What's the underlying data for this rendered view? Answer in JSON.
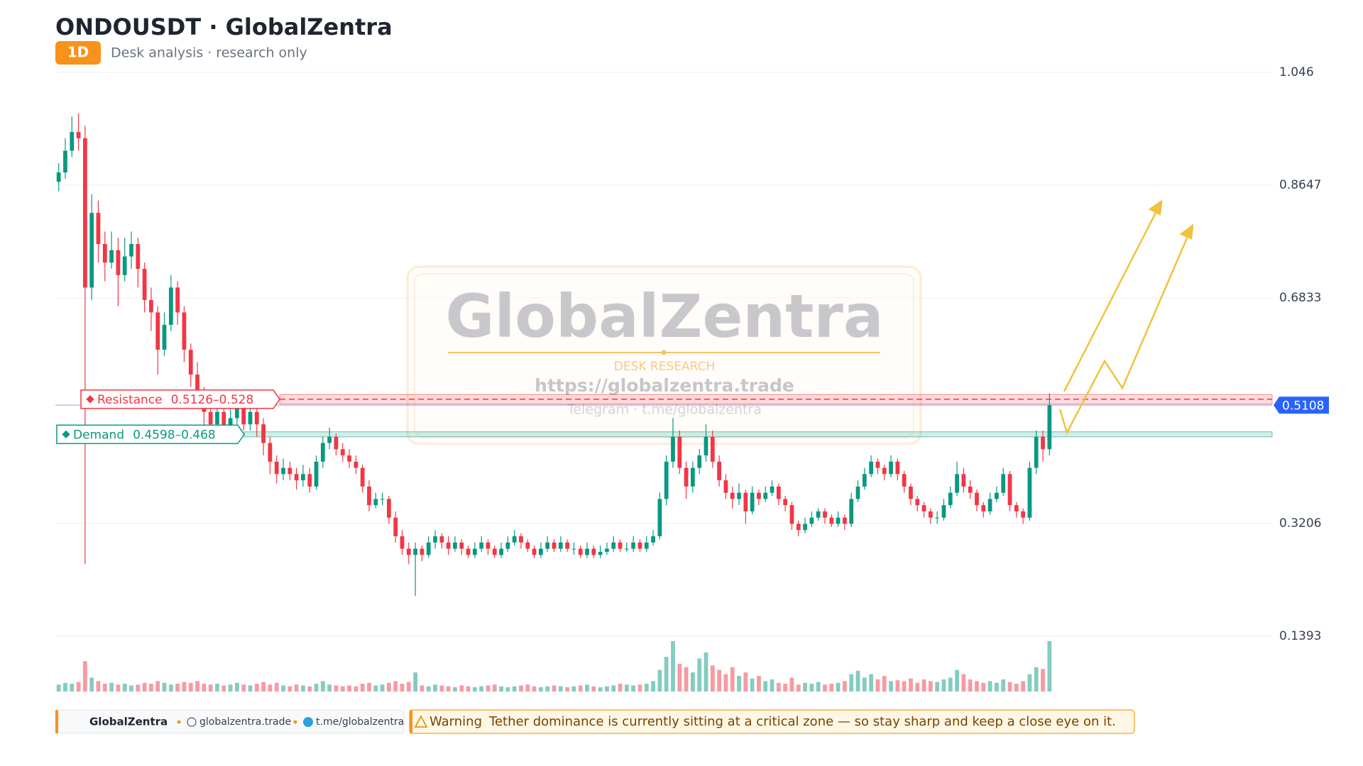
{
  "header": {
    "title": "ONDOUSDT · GlobalZentra",
    "timeframe": "1D",
    "subtitle": "Desk analysis · research only"
  },
  "chart_data": {
    "type": "candlestick",
    "candles": [
      [
        0.87,
        0.9,
        0.855,
        0.885
      ],
      [
        0.885,
        0.94,
        0.875,
        0.92
      ],
      [
        0.92,
        0.975,
        0.91,
        0.95
      ],
      [
        0.95,
        0.98,
        0.92,
        0.94
      ],
      [
        0.94,
        0.96,
        0.255,
        0.7
      ],
      [
        0.7,
        0.85,
        0.68,
        0.82
      ],
      [
        0.82,
        0.84,
        0.74,
        0.77
      ],
      [
        0.77,
        0.79,
        0.71,
        0.74
      ],
      [
        0.74,
        0.79,
        0.73,
        0.76
      ],
      [
        0.76,
        0.78,
        0.67,
        0.72
      ],
      [
        0.72,
        0.78,
        0.71,
        0.75
      ],
      [
        0.75,
        0.79,
        0.73,
        0.77
      ],
      [
        0.77,
        0.78,
        0.7,
        0.73
      ],
      [
        0.73,
        0.74,
        0.66,
        0.68
      ],
      [
        0.68,
        0.7,
        0.63,
        0.66
      ],
      [
        0.66,
        0.67,
        0.56,
        0.6
      ],
      [
        0.6,
        0.66,
        0.59,
        0.64
      ],
      [
        0.64,
        0.72,
        0.63,
        0.7
      ],
      [
        0.7,
        0.71,
        0.64,
        0.66
      ],
      [
        0.66,
        0.67,
        0.58,
        0.6
      ],
      [
        0.6,
        0.61,
        0.54,
        0.56
      ],
      [
        0.56,
        0.58,
        0.51,
        0.53
      ],
      [
        0.53,
        0.54,
        0.47,
        0.5
      ],
      [
        0.5,
        0.52,
        0.46,
        0.48
      ],
      [
        0.48,
        0.52,
        0.47,
        0.5
      ],
      [
        0.5,
        0.51,
        0.45,
        0.47
      ],
      [
        0.47,
        0.51,
        0.46,
        0.49
      ],
      [
        0.49,
        0.53,
        0.48,
        0.51
      ],
      [
        0.51,
        0.52,
        0.47,
        0.48
      ],
      [
        0.48,
        0.52,
        0.47,
        0.5
      ],
      [
        0.5,
        0.51,
        0.46,
        0.48
      ],
      [
        0.48,
        0.49,
        0.43,
        0.45
      ],
      [
        0.45,
        0.46,
        0.4,
        0.42
      ],
      [
        0.42,
        0.43,
        0.385,
        0.4
      ],
      [
        0.4,
        0.425,
        0.39,
        0.41
      ],
      [
        0.41,
        0.42,
        0.39,
        0.4
      ],
      [
        0.4,
        0.41,
        0.375,
        0.39
      ],
      [
        0.39,
        0.415,
        0.38,
        0.4
      ],
      [
        0.4,
        0.41,
        0.37,
        0.38
      ],
      [
        0.38,
        0.43,
        0.375,
        0.42
      ],
      [
        0.42,
        0.46,
        0.41,
        0.45
      ],
      [
        0.45,
        0.475,
        0.44,
        0.46
      ],
      [
        0.46,
        0.465,
        0.43,
        0.44
      ],
      [
        0.44,
        0.45,
        0.42,
        0.43
      ],
      [
        0.43,
        0.44,
        0.41,
        0.42
      ],
      [
        0.42,
        0.43,
        0.4,
        0.41
      ],
      [
        0.41,
        0.415,
        0.37,
        0.38
      ],
      [
        0.38,
        0.39,
        0.34,
        0.35
      ],
      [
        0.35,
        0.37,
        0.345,
        0.36
      ],
      [
        0.36,
        0.37,
        0.35,
        0.36
      ],
      [
        0.36,
        0.365,
        0.32,
        0.33
      ],
      [
        0.33,
        0.34,
        0.29,
        0.3
      ],
      [
        0.3,
        0.31,
        0.27,
        0.28
      ],
      [
        0.28,
        0.29,
        0.255,
        0.27
      ],
      [
        0.27,
        0.29,
        0.204,
        0.28
      ],
      [
        0.28,
        0.285,
        0.26,
        0.27
      ],
      [
        0.27,
        0.3,
        0.265,
        0.29
      ],
      [
        0.29,
        0.31,
        0.28,
        0.3
      ],
      [
        0.3,
        0.305,
        0.28,
        0.29
      ],
      [
        0.29,
        0.3,
        0.27,
        0.28
      ],
      [
        0.28,
        0.3,
        0.275,
        0.29
      ],
      [
        0.29,
        0.295,
        0.27,
        0.28
      ],
      [
        0.28,
        0.285,
        0.265,
        0.27
      ],
      [
        0.27,
        0.29,
        0.265,
        0.28
      ],
      [
        0.28,
        0.3,
        0.275,
        0.29
      ],
      [
        0.29,
        0.295,
        0.27,
        0.28
      ],
      [
        0.28,
        0.285,
        0.265,
        0.27
      ],
      [
        0.27,
        0.29,
        0.265,
        0.28
      ],
      [
        0.28,
        0.3,
        0.275,
        0.29
      ],
      [
        0.29,
        0.31,
        0.285,
        0.3
      ],
      [
        0.3,
        0.305,
        0.28,
        0.29
      ],
      [
        0.29,
        0.295,
        0.275,
        0.28
      ],
      [
        0.28,
        0.285,
        0.265,
        0.27
      ],
      [
        0.27,
        0.29,
        0.265,
        0.28
      ],
      [
        0.28,
        0.3,
        0.275,
        0.29
      ],
      [
        0.29,
        0.295,
        0.275,
        0.28
      ],
      [
        0.28,
        0.3,
        0.275,
        0.29
      ],
      [
        0.29,
        0.295,
        0.275,
        0.28
      ],
      [
        0.28,
        0.29,
        0.27,
        0.28
      ],
      [
        0.28,
        0.285,
        0.265,
        0.27
      ],
      [
        0.27,
        0.29,
        0.265,
        0.28
      ],
      [
        0.28,
        0.285,
        0.265,
        0.27
      ],
      [
        0.27,
        0.285,
        0.265,
        0.275
      ],
      [
        0.275,
        0.29,
        0.27,
        0.28
      ],
      [
        0.28,
        0.3,
        0.275,
        0.29
      ],
      [
        0.29,
        0.295,
        0.275,
        0.28
      ],
      [
        0.28,
        0.29,
        0.275,
        0.28
      ],
      [
        0.28,
        0.3,
        0.275,
        0.29
      ],
      [
        0.29,
        0.295,
        0.275,
        0.28
      ],
      [
        0.28,
        0.3,
        0.275,
        0.29
      ],
      [
        0.29,
        0.31,
        0.285,
        0.3
      ],
      [
        0.3,
        0.37,
        0.295,
        0.36
      ],
      [
        0.36,
        0.43,
        0.35,
        0.42
      ],
      [
        0.42,
        0.49,
        0.41,
        0.46
      ],
      [
        0.46,
        0.47,
        0.4,
        0.41
      ],
      [
        0.41,
        0.42,
        0.36,
        0.38
      ],
      [
        0.38,
        0.42,
        0.37,
        0.41
      ],
      [
        0.41,
        0.44,
        0.4,
        0.43
      ],
      [
        0.43,
        0.48,
        0.42,
        0.46
      ],
      [
        0.46,
        0.47,
        0.41,
        0.42
      ],
      [
        0.42,
        0.43,
        0.38,
        0.39
      ],
      [
        0.39,
        0.4,
        0.36,
        0.37
      ],
      [
        0.37,
        0.38,
        0.345,
        0.36
      ],
      [
        0.36,
        0.385,
        0.35,
        0.37
      ],
      [
        0.37,
        0.375,
        0.32,
        0.34
      ],
      [
        0.34,
        0.38,
        0.335,
        0.37
      ],
      [
        0.37,
        0.375,
        0.35,
        0.36
      ],
      [
        0.36,
        0.38,
        0.355,
        0.37
      ],
      [
        0.37,
        0.39,
        0.365,
        0.38
      ],
      [
        0.38,
        0.385,
        0.35,
        0.36
      ],
      [
        0.36,
        0.365,
        0.34,
        0.35
      ],
      [
        0.35,
        0.355,
        0.31,
        0.32
      ],
      [
        0.32,
        0.325,
        0.3,
        0.31
      ],
      [
        0.31,
        0.33,
        0.305,
        0.32
      ],
      [
        0.32,
        0.34,
        0.315,
        0.33
      ],
      [
        0.33,
        0.345,
        0.325,
        0.34
      ],
      [
        0.34,
        0.345,
        0.32,
        0.33
      ],
      [
        0.33,
        0.335,
        0.315,
        0.32
      ],
      [
        0.32,
        0.34,
        0.315,
        0.33
      ],
      [
        0.33,
        0.335,
        0.31,
        0.32
      ],
      [
        0.32,
        0.37,
        0.315,
        0.36
      ],
      [
        0.36,
        0.39,
        0.355,
        0.38
      ],
      [
        0.38,
        0.41,
        0.375,
        0.4
      ],
      [
        0.4,
        0.43,
        0.395,
        0.42
      ],
      [
        0.42,
        0.425,
        0.4,
        0.41
      ],
      [
        0.41,
        0.415,
        0.39,
        0.4
      ],
      [
        0.4,
        0.43,
        0.395,
        0.42
      ],
      [
        0.42,
        0.425,
        0.39,
        0.4
      ],
      [
        0.4,
        0.405,
        0.37,
        0.38
      ],
      [
        0.38,
        0.385,
        0.35,
        0.36
      ],
      [
        0.36,
        0.365,
        0.34,
        0.35
      ],
      [
        0.35,
        0.355,
        0.33,
        0.34
      ],
      [
        0.34,
        0.345,
        0.32,
        0.33
      ],
      [
        0.33,
        0.34,
        0.32,
        0.33
      ],
      [
        0.33,
        0.36,
        0.325,
        0.35
      ],
      [
        0.35,
        0.38,
        0.345,
        0.37
      ],
      [
        0.37,
        0.42,
        0.365,
        0.4
      ],
      [
        0.4,
        0.41,
        0.37,
        0.38
      ],
      [
        0.38,
        0.39,
        0.36,
        0.37
      ],
      [
        0.37,
        0.375,
        0.34,
        0.35
      ],
      [
        0.35,
        0.355,
        0.33,
        0.34
      ],
      [
        0.34,
        0.37,
        0.335,
        0.36
      ],
      [
        0.36,
        0.38,
        0.355,
        0.37
      ],
      [
        0.37,
        0.41,
        0.365,
        0.4
      ],
      [
        0.4,
        0.405,
        0.34,
        0.35
      ],
      [
        0.35,
        0.355,
        0.33,
        0.34
      ],
      [
        0.34,
        0.345,
        0.32,
        0.33
      ],
      [
        0.33,
        0.42,
        0.325,
        0.41
      ],
      [
        0.41,
        0.47,
        0.4,
        0.46
      ],
      [
        0.46,
        0.47,
        0.42,
        0.44
      ],
      [
        0.44,
        0.53,
        0.43,
        0.5108
      ]
    ],
    "volume": [
      8,
      10,
      9,
      11,
      35,
      16,
      12,
      9,
      10,
      8,
      9,
      7,
      8,
      10,
      9,
      12,
      10,
      8,
      9,
      11,
      10,
      12,
      9,
      8,
      9,
      7,
      8,
      10,
      8,
      7,
      9,
      11,
      8,
      10,
      7,
      6,
      8,
      7,
      6,
      9,
      12,
      8,
      7,
      6,
      7,
      6,
      9,
      10,
      7,
      8,
      10,
      12,
      9,
      11,
      22,
      7,
      6,
      8,
      7,
      6,
      5,
      7,
      6,
      5,
      6,
      7,
      8,
      6,
      5,
      6,
      7,
      8,
      6,
      5,
      6,
      7,
      6,
      5,
      6,
      7,
      8,
      6,
      5,
      6,
      7,
      9,
      8,
      7,
      8,
      9,
      12,
      25,
      40,
      58,
      32,
      28,
      22,
      38,
      45,
      30,
      25,
      20,
      28,
      18,
      22,
      15,
      18,
      12,
      14,
      10,
      9,
      16,
      8,
      10,
      9,
      11,
      8,
      9,
      10,
      12,
      20,
      24,
      16,
      20,
      14,
      18,
      12,
      13,
      12,
      15,
      10,
      14,
      12,
      11,
      14,
      16,
      25,
      20,
      14,
      12,
      10,
      12,
      10,
      14,
      11,
      9,
      12,
      20,
      28,
      26,
      58
    ],
    "up_color": "#089981",
    "down_color": "#f23645",
    "ylim": [
      0.1393,
      1.046
    ],
    "yticks": [
      0.1393,
      0.3206,
      0.6833,
      0.8647,
      1.046
    ],
    "grid": true,
    "last_price": 0.5108,
    "last_price_color": "#2962ff",
    "zones": [
      {
        "name": "Resistance",
        "low": 0.5126,
        "high": 0.528,
        "label": "0.5126–0.528",
        "color": "#f23645"
      },
      {
        "name": "Demand",
        "low": 0.4598,
        "high": 0.468,
        "label": "0.4598–0.468",
        "color": "#089981"
      }
    ]
  },
  "watermark": {
    "brand": "GlobalZentra",
    "tagline": "DESK RESEARCH",
    "url": "https://globalzentra.trade",
    "telegram": "Telegram · t.me/globalzentra"
  },
  "footer": {
    "brand": "GlobalZentra",
    "site": "globalzentra.trade",
    "telegram": "t.me/globalzentra",
    "warning_label": "Warning",
    "warning_text": "Tether dominance is currently sitting at a critical zone — so stay sharp and keep a close eye on it."
  }
}
